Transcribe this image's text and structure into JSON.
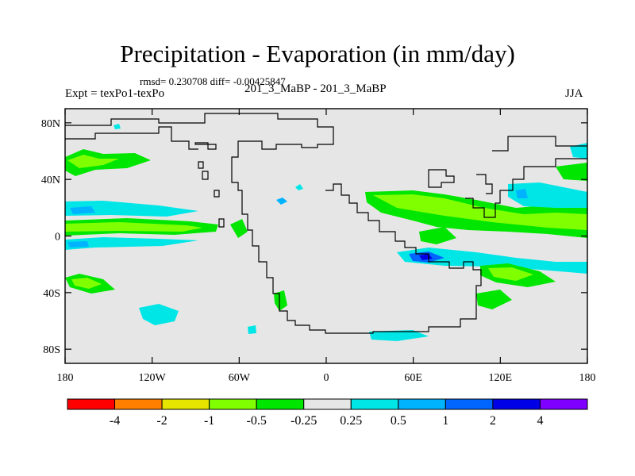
{
  "title": "Precipitation - Evaporation (in mm/day)",
  "stats": "rmsd= 0.230708 diff= -0.00425847",
  "experiment": "Expt = texPo1-texPo",
  "runs": "201_3_MaBP - 201_3_MaBP",
  "season": "JJA",
  "map": {
    "background_color": "#e6e6e6",
    "lat_ticks": [
      "80N",
      "40N",
      "0",
      "40S",
      "80S"
    ],
    "lon_ticks": [
      "180",
      "120W",
      "60W",
      "0",
      "60E",
      "120E",
      "180"
    ]
  },
  "colorbar": {
    "colors": [
      "#ff0000",
      "#ff8000",
      "#e5e500",
      "#80ff00",
      "#00e600",
      "#e6e6e6",
      "#00e6e6",
      "#00b3ff",
      "#0066ff",
      "#0000e6",
      "#8000ff"
    ],
    "labels": [
      "-4",
      "-2",
      "-1",
      "-0.5",
      "-0.25",
      "0.25",
      "0.5",
      "1",
      "2",
      "4"
    ]
  }
}
